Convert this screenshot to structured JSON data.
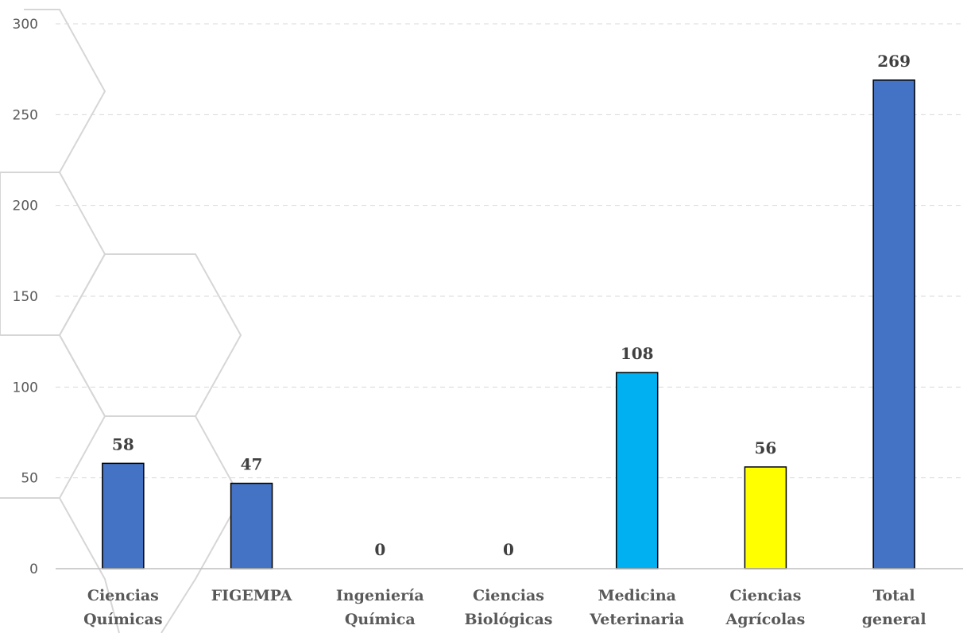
{
  "chart_data": {
    "type": "bar",
    "title": "",
    "xlabel": "",
    "ylabel": "",
    "ylim": [
      0,
      300
    ],
    "yticks": [
      0,
      50,
      100,
      150,
      200,
      250,
      300
    ],
    "grid": true,
    "legend": "none",
    "categories": [
      [
        "Ciencias",
        "Químicas"
      ],
      [
        "FIGEMPA"
      ],
      [
        "Ingeniería",
        "Química"
      ],
      [
        "Ciencias",
        "Biológicas"
      ],
      [
        "Medicina",
        "Veterinaria"
      ],
      [
        "Ciencias",
        "Agrícolas"
      ],
      [
        "Total",
        "general"
      ]
    ],
    "values": [
      58,
      47,
      0,
      0,
      108,
      56,
      269
    ],
    "colors": [
      "#4472C4",
      "#4472C4",
      "#4472C4",
      "#4472C4",
      "#00B0F0",
      "#FFFF00",
      "#4472C4"
    ]
  }
}
